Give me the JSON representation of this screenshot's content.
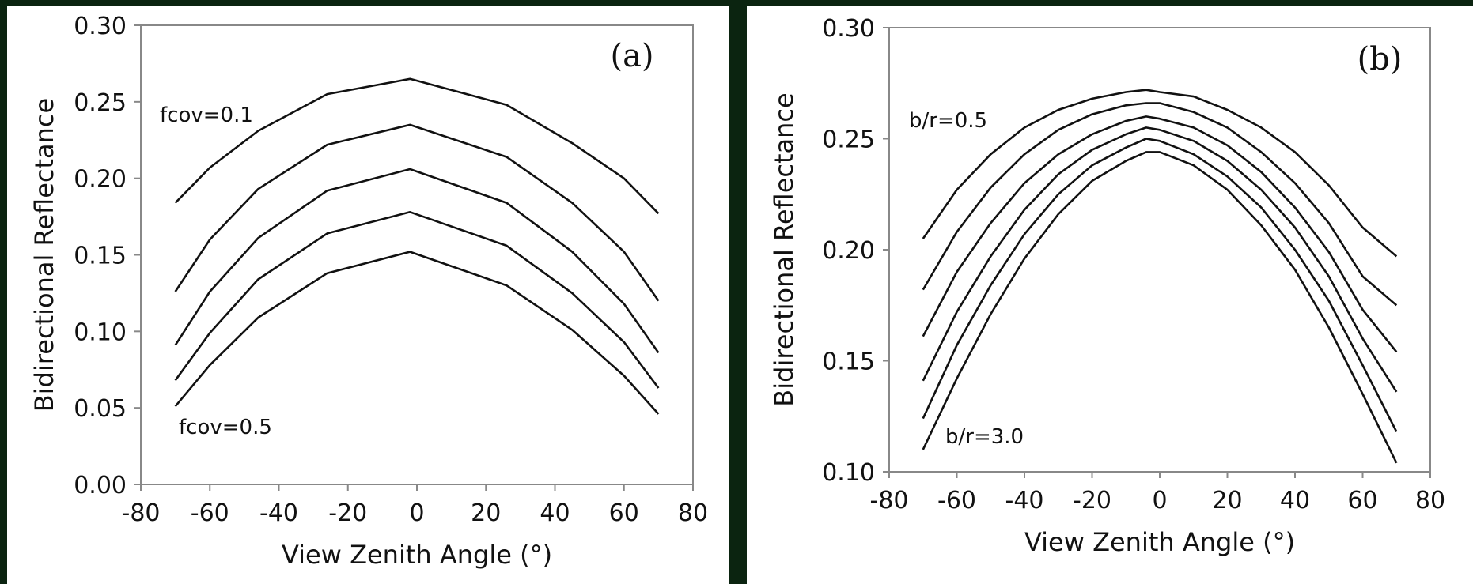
{
  "chart_data": [
    {
      "type": "line",
      "panel_label": "(a)",
      "xlabel": "View Zenith Angle (°)",
      "ylabel": "Bidirectional Reflectance",
      "xlim": [
        -80,
        80
      ],
      "ylim": [
        0.0,
        0.3
      ],
      "xticks": [
        "-80",
        "-60",
        "-40",
        "-20",
        "0",
        "20",
        "40",
        "60",
        "80"
      ],
      "yticks": [
        "0.00",
        "0.05",
        "0.10",
        "0.15",
        "0.20",
        "0.25",
        "0.30"
      ],
      "grid": false,
      "annotations": {
        "top": "fcov=0.1",
        "bottom": "fcov=0.5"
      },
      "line_color": "#111111",
      "x": [
        -70,
        -60,
        -46,
        -26,
        -2,
        26,
        45,
        60,
        70
      ],
      "series": [
        {
          "values": [
            0.184,
            0.207,
            0.231,
            0.255,
            0.265,
            0.248,
            0.223,
            0.2,
            0.177
          ]
        },
        {
          "values": [
            0.126,
            0.16,
            0.193,
            0.222,
            0.235,
            0.214,
            0.184,
            0.152,
            0.12
          ]
        },
        {
          "values": [
            0.091,
            0.126,
            0.161,
            0.192,
            0.206,
            0.184,
            0.152,
            0.118,
            0.086
          ]
        },
        {
          "values": [
            0.068,
            0.099,
            0.134,
            0.164,
            0.178,
            0.156,
            0.125,
            0.093,
            0.063
          ]
        },
        {
          "values": [
            0.051,
            0.078,
            0.109,
            0.138,
            0.152,
            0.13,
            0.101,
            0.071,
            0.046
          ]
        }
      ]
    },
    {
      "type": "line",
      "panel_label": "(b)",
      "xlabel": "View Zenith Angle (°)",
      "ylabel": "Bidirectional Reflectance",
      "xlim": [
        -80,
        80
      ],
      "ylim": [
        0.1,
        0.3
      ],
      "xticks": [
        "-80",
        "-60",
        "-40",
        "-20",
        "0",
        "20",
        "40",
        "60",
        "80"
      ],
      "yticks": [
        "0.10",
        "0.15",
        "0.20",
        "0.25",
        "0.30"
      ],
      "grid": false,
      "annotations": {
        "top": "b/r=0.5",
        "bottom": "b/r=3.0"
      },
      "line_color": "#111111",
      "x": [
        -70,
        -60,
        -50,
        -40,
        -30,
        -20,
        -10,
        -4,
        0,
        10,
        20,
        30,
        40,
        50,
        60,
        70
      ],
      "series": [
        {
          "values": [
            0.205,
            0.227,
            0.243,
            0.255,
            0.263,
            0.268,
            0.271,
            0.272,
            0.271,
            0.269,
            0.263,
            0.255,
            0.244,
            0.229,
            0.21,
            0.197
          ]
        },
        {
          "values": [
            0.182,
            0.208,
            0.228,
            0.243,
            0.254,
            0.261,
            0.265,
            0.266,
            0.266,
            0.262,
            0.255,
            0.244,
            0.23,
            0.212,
            0.188,
            0.175
          ]
        },
        {
          "values": [
            0.161,
            0.19,
            0.212,
            0.23,
            0.243,
            0.252,
            0.258,
            0.26,
            0.259,
            0.255,
            0.247,
            0.235,
            0.219,
            0.199,
            0.173,
            0.154
          ]
        },
        {
          "values": [
            0.141,
            0.172,
            0.197,
            0.218,
            0.234,
            0.245,
            0.252,
            0.255,
            0.254,
            0.249,
            0.24,
            0.227,
            0.21,
            0.188,
            0.16,
            0.136
          ]
        },
        {
          "values": [
            0.124,
            0.157,
            0.184,
            0.207,
            0.225,
            0.238,
            0.246,
            0.25,
            0.249,
            0.243,
            0.233,
            0.219,
            0.2,
            0.177,
            0.148,
            0.118
          ]
        },
        {
          "values": [
            0.11,
            0.142,
            0.171,
            0.196,
            0.216,
            0.231,
            0.24,
            0.244,
            0.244,
            0.238,
            0.227,
            0.211,
            0.191,
            0.165,
            0.135,
            0.104
          ]
        }
      ]
    }
  ]
}
